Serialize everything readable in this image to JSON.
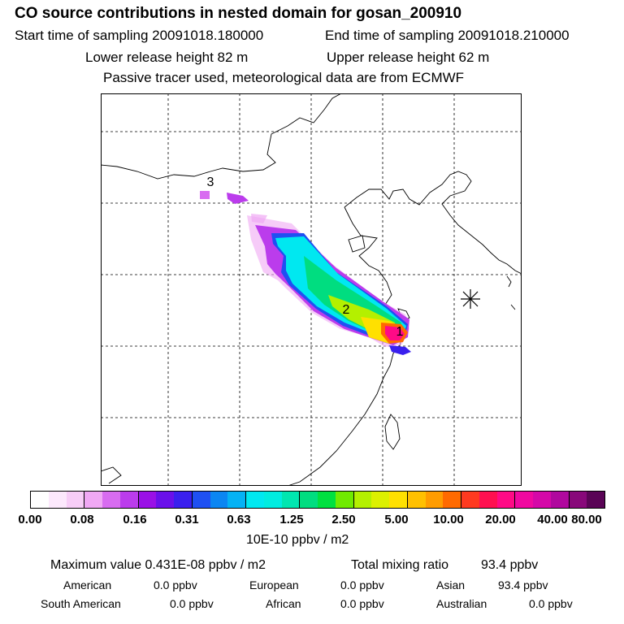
{
  "header": {
    "title": "CO  source contributions in nested domain for gosan_200910",
    "start_time": "Start time of sampling 20091018.180000",
    "end_time": "End time of sampling 20091018.210000",
    "lower_height": "Lower release height   82 m",
    "upper_height": "Upper release height   62 m",
    "note": "Passive tracer used, meteorological data are from ECMWF"
  },
  "map": {
    "labels": [
      "1",
      "2",
      "3"
    ],
    "receptor_marker": "asterisk-icon"
  },
  "colorbar": {
    "colors": [
      "#ffffff",
      "#fce8fc",
      "#f7cdf7",
      "#f0a8f4",
      "#d86cf0",
      "#bb3cec",
      "#9a10e6",
      "#6a10ea",
      "#3a20ee",
      "#1f50f2",
      "#0c86f2",
      "#05b2f4",
      "#00e8f0",
      "#00ece0",
      "#00e6b0",
      "#00dd80",
      "#00e040",
      "#70ea00",
      "#b4f000",
      "#dcf000",
      "#ffe000",
      "#ffc000",
      "#ff9c00",
      "#ff6a00",
      "#ff3a20",
      "#ff1050",
      "#ff0a86",
      "#f008a0",
      "#d508a8",
      "#b0089e",
      "#88087a",
      "#5a0456"
    ],
    "ticks": [
      "0.00",
      "0.08",
      "0.16",
      "0.31",
      "0.63",
      "1.25",
      "2.50",
      "5.00",
      "10.00",
      "20.00",
      "40.00",
      "80.00"
    ],
    "unit": "10E-10 ppbv / m2"
  },
  "summary": {
    "max_label": "Maximum value  0.431E-08 ppbv / m2",
    "total_label": "Total mixing ratio",
    "total_value": "93.4 ppbv",
    "american_label": "American",
    "american_value": "0.0 ppbv",
    "european_label": "European",
    "european_value": "0.0 ppbv",
    "asian_label": "Asian",
    "asian_value": "93.4 ppbv",
    "south_american_label": "South American",
    "south_american_value": "0.0 ppbv",
    "african_label": "African",
    "african_value": "0.0 ppbv",
    "australian_label": "Australian",
    "australian_value": "0.0 ppbv"
  }
}
